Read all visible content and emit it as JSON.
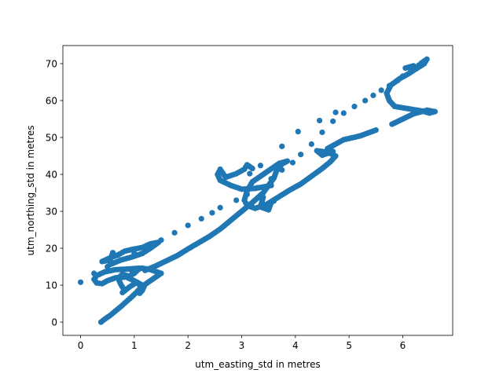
{
  "chart_data": {
    "type": "scatter",
    "title": "",
    "xlabel": "utm_easting_std in metres",
    "ylabel": "utm_northing_std in metres",
    "xlim": [
      -0.33,
      6.93
    ],
    "ylim": [
      -3.6,
      74.9
    ],
    "xticks": [
      0,
      1,
      2,
      3,
      4,
      5,
      6
    ],
    "yticks": [
      0,
      10,
      20,
      30,
      40,
      50,
      60,
      70
    ],
    "grid": false,
    "legend": "none",
    "marker_color": "#1f77b4",
    "series": [
      {
        "points": [
          [
            0.38,
            0.0
          ],
          [
            0.45,
            0.8
          ],
          [
            0.55,
            1.8
          ],
          [
            0.65,
            3.0
          ],
          [
            0.75,
            4.2
          ],
          [
            0.85,
            5.5
          ],
          [
            0.95,
            6.8
          ],
          [
            1.05,
            8.2
          ],
          [
            1.1,
            9.0
          ],
          [
            1.15,
            10.0
          ],
          [
            1.0,
            11.2
          ],
          [
            0.85,
            12.2
          ],
          [
            0.65,
            12.0
          ],
          [
            0.5,
            11.2
          ],
          [
            0.4,
            10.4
          ],
          [
            0.3,
            10.6
          ],
          [
            0.25,
            11.6
          ],
          [
            0.3,
            12.6
          ],
          [
            0.45,
            13.6
          ],
          [
            0.65,
            14.2
          ],
          [
            0.9,
            14.4
          ],
          [
            1.1,
            14.6
          ],
          [
            1.0,
            13.2
          ],
          [
            0.9,
            12.4
          ],
          [
            0.78,
            13.0
          ],
          [
            0.7,
            11.8
          ],
          [
            0.75,
            10.2
          ],
          [
            0.8,
            9.0
          ],
          [
            0.78,
            8.0
          ],
          [
            0.9,
            9.4
          ],
          [
            1.05,
            10.8
          ],
          [
            1.15,
            9.2
          ],
          [
            1.1,
            7.8
          ],
          [
            1.15,
            8.6
          ],
          [
            1.2,
            10.2
          ],
          [
            1.3,
            11.2
          ],
          [
            1.4,
            12.2
          ],
          [
            1.5,
            13.2
          ],
          [
            1.3,
            14.2
          ],
          [
            1.15,
            14.6
          ],
          [
            0.95,
            14.0
          ],
          [
            0.55,
            15.6
          ],
          [
            0.75,
            16.8
          ],
          [
            0.95,
            17.6
          ],
          [
            1.15,
            18.6
          ],
          [
            1.3,
            20.0
          ],
          [
            1.45,
            21.6
          ],
          [
            1.3,
            21.2
          ],
          [
            1.15,
            20.2
          ],
          [
            1.0,
            19.8
          ],
          [
            0.82,
            19.2
          ],
          [
            0.7,
            18.2
          ],
          [
            0.55,
            17.4
          ],
          [
            0.4,
            16.4
          ],
          [
            0.55,
            16.8
          ],
          [
            0.6,
            18.8
          ],
          [
            1.2,
            14.0
          ],
          [
            1.4,
            15.2
          ],
          [
            1.6,
            16.6
          ],
          [
            1.8,
            18.0
          ],
          [
            2.0,
            19.8
          ],
          [
            2.2,
            21.5
          ],
          [
            2.4,
            23.2
          ],
          [
            2.6,
            25.2
          ],
          [
            2.8,
            27.6
          ],
          [
            3.0,
            30.0
          ],
          [
            3.2,
            32.4
          ],
          [
            3.4,
            35.0
          ],
          [
            3.5,
            37.0
          ],
          [
            3.6,
            39.0
          ],
          [
            3.65,
            41.0
          ],
          [
            3.75,
            42.8
          ],
          [
            3.85,
            43.6
          ],
          [
            3.7,
            43.0
          ],
          [
            3.55,
            41.5
          ],
          [
            3.35,
            39.5
          ],
          [
            3.2,
            38.0
          ],
          [
            3.1,
            35.5
          ],
          [
            3.05,
            33.0
          ],
          [
            3.1,
            31.6
          ],
          [
            3.25,
            30.8
          ],
          [
            3.45,
            31.8
          ],
          [
            3.6,
            32.8
          ],
          [
            3.4,
            33.8
          ],
          [
            3.35,
            31.2
          ],
          [
            3.5,
            30.4
          ],
          [
            3.55,
            32.4
          ],
          [
            3.5,
            32.2
          ],
          [
            3.7,
            34.0
          ],
          [
            3.9,
            35.8
          ],
          [
            4.1,
            37.4
          ],
          [
            4.3,
            39.5
          ],
          [
            4.5,
            41.6
          ],
          [
            4.65,
            43.4
          ],
          [
            4.75,
            45.0
          ],
          [
            4.6,
            46.0
          ],
          [
            4.4,
            46.4
          ],
          [
            4.5,
            45.2
          ],
          [
            4.7,
            46.2
          ],
          [
            4.6,
            47.0
          ],
          [
            4.9,
            49.4
          ],
          [
            5.2,
            50.4
          ],
          [
            5.5,
            52.0
          ],
          [
            5.8,
            53.6
          ],
          [
            6.0,
            55.0
          ],
          [
            6.2,
            56.4
          ],
          [
            6.35,
            57.0
          ],
          [
            6.45,
            57.4
          ],
          [
            6.6,
            57.0
          ],
          [
            6.5,
            56.6
          ],
          [
            6.35,
            57.2
          ],
          [
            6.1,
            57.8
          ],
          [
            5.85,
            58.4
          ],
          [
            5.75,
            60.0
          ],
          [
            5.7,
            62.0
          ],
          [
            5.78,
            64.2
          ],
          [
            5.95,
            66.0
          ],
          [
            6.1,
            67.2
          ],
          [
            6.25,
            68.6
          ],
          [
            6.4,
            70.0
          ],
          [
            6.45,
            71.2
          ],
          [
            6.35,
            70.2
          ],
          [
            6.2,
            69.4
          ],
          [
            6.05,
            68.8
          ],
          [
            3.55,
            37.0
          ],
          [
            3.25,
            36.2
          ],
          [
            3.0,
            36.0
          ],
          [
            2.8,
            37.0
          ],
          [
            2.6,
            38.4
          ],
          [
            2.55,
            40.0
          ],
          [
            2.6,
            41.4
          ],
          [
            2.7,
            39.2
          ],
          [
            2.9,
            40.2
          ],
          [
            3.05,
            41.4
          ],
          [
            3.1,
            42.6
          ],
          [
            3.2,
            41.6
          ],
          [
            3.15,
            40.2
          ],
          [
            3.35,
            42.4
          ],
          [
            0.0,
            10.8
          ],
          [
            0.25,
            13.2
          ],
          [
            0.5,
            15.0
          ],
          [
            0.75,
            16.8
          ],
          [
            1.0,
            18.6
          ],
          [
            1.25,
            20.2
          ],
          [
            1.5,
            22.2
          ],
          [
            1.75,
            24.2
          ],
          [
            2.0,
            26.2
          ],
          [
            2.25,
            28.0
          ],
          [
            2.45,
            29.6
          ],
          [
            2.6,
            31.0
          ],
          [
            2.9,
            33.0
          ],
          [
            3.1,
            34.6
          ],
          [
            3.3,
            36.4
          ],
          [
            3.55,
            38.8
          ],
          [
            3.75,
            41.2
          ],
          [
            3.95,
            43.2
          ],
          [
            4.1,
            45.4
          ],
          [
            4.3,
            48.2
          ],
          [
            4.5,
            51.4
          ],
          [
            4.7,
            54.4
          ],
          [
            4.9,
            56.6
          ],
          [
            5.1,
            58.4
          ],
          [
            5.3,
            60.0
          ],
          [
            5.45,
            61.4
          ],
          [
            5.6,
            62.8
          ],
          [
            5.75,
            64.0
          ],
          [
            5.9,
            65.4
          ],
          [
            6.0,
            66.6
          ],
          [
            6.15,
            68.0
          ],
          [
            6.3,
            69.6
          ],
          [
            3.75,
            47.6
          ],
          [
            4.05,
            51.6
          ],
          [
            4.45,
            54.6
          ],
          [
            4.75,
            56.8
          ]
        ]
      }
    ]
  }
}
